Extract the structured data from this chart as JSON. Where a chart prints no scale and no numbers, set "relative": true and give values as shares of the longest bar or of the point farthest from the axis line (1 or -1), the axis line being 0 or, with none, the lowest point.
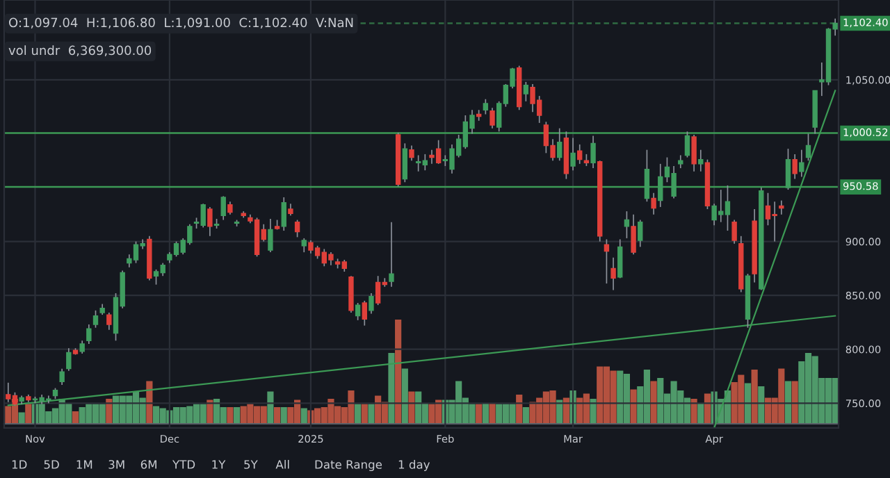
{
  "chart_data": [
    {
      "type": "candlestick",
      "categories": [
        null,
        null,
        null,
        null,
        "Nov",
        null,
        null,
        null,
        null,
        null,
        null,
        null,
        null,
        null,
        null,
        null,
        null,
        null,
        null,
        null,
        null,
        null,
        null,
        null,
        "Dec",
        null,
        null,
        null,
        null,
        null,
        null,
        null,
        null,
        null,
        null,
        null,
        null,
        null,
        null,
        null,
        null,
        null,
        null,
        null,
        null,
        "2025",
        null,
        null,
        null,
        null,
        null,
        null,
        null,
        null,
        null,
        null,
        null,
        null,
        null,
        null,
        null,
        null,
        null,
        null,
        null,
        "Feb",
        null,
        null,
        null,
        null,
        null,
        null,
        null,
        null,
        null,
        null,
        null,
        null,
        null,
        null,
        null,
        null,
        null,
        null,
        "Mar",
        null,
        null,
        null,
        null,
        null,
        null,
        null,
        null,
        null,
        null,
        null,
        null,
        null,
        null,
        null,
        null,
        null,
        null,
        null,
        null,
        "Apr",
        null,
        null,
        null,
        null,
        null,
        null,
        null,
        null,
        null,
        null,
        null,
        null,
        null,
        null,
        null,
        null,
        null,
        null
      ],
      "ohlc": [
        [
          758,
          769,
          751,
          754
        ],
        [
          757,
          760,
          748,
          749
        ],
        [
          752,
          757,
          749,
          755
        ],
        [
          756,
          758,
          751,
          753
        ],
        [
          753,
          756,
          750,
          754
        ],
        [
          752,
          758,
          749,
          755
        ],
        [
          753,
          757,
          750,
          754
        ],
        [
          757,
          764,
          754,
          762
        ],
        [
          770,
          782,
          767,
          779
        ],
        [
          782,
          801,
          780,
          797
        ],
        [
          799,
          801,
          795,
          796
        ],
        [
          798,
          808,
          796,
          805
        ],
        [
          808,
          823,
          805,
          819
        ],
        [
          823,
          836,
          820,
          831
        ],
        [
          834,
          842,
          832,
          838
        ],
        [
          832,
          834,
          818,
          823
        ],
        [
          815,
          852,
          808,
          848
        ],
        [
          840,
          873,
          838,
          871
        ],
        [
          880,
          888,
          876,
          884
        ],
        [
          883,
          900,
          880,
          897
        ],
        [
          896,
          902,
          893,
          898
        ],
        [
          902,
          905,
          864,
          866
        ],
        [
          868,
          874,
          860,
          872
        ],
        [
          871,
          880,
          868,
          878
        ],
        [
          883,
          890,
          880,
          888
        ],
        [
          888,
          900,
          886,
          898
        ],
        [
          890,
          903,
          888,
          901
        ],
        [
          899,
          916,
          897,
          914
        ],
        [
          917,
          922,
          912,
          918
        ],
        [
          915,
          935,
          913,
          934
        ],
        [
          930,
          932,
          905,
          914
        ],
        [
          915,
          921,
          912,
          916
        ],
        [
          924,
          942,
          920,
          941
        ],
        [
          934,
          937,
          925,
          927
        ],
        [
          917,
          920,
          914,
          918
        ],
        [
          926,
          928,
          922,
          924
        ],
        [
          922,
          925,
          917,
          919
        ],
        [
          920,
          922,
          886,
          888
        ],
        [
          911,
          916,
          900,
          902
        ],
        [
          892,
          921,
          890,
          911
        ],
        [
          914,
          920,
          911,
          912
        ],
        [
          914,
          941,
          910,
          936
        ],
        [
          930,
          935,
          924,
          926
        ],
        [
          918,
          920,
          904,
          909
        ],
        [
          896,
          903,
          890,
          901
        ],
        [
          899,
          901,
          889,
          892
        ],
        [
          894,
          896,
          884,
          887
        ],
        [
          890,
          893,
          877,
          880
        ],
        [
          888,
          890,
          878,
          883
        ],
        [
          881,
          884,
          875,
          879
        ],
        [
          881,
          883,
          872,
          875
        ],
        [
          867,
          868,
          834,
          836
        ],
        [
          831,
          843,
          827,
          841
        ],
        [
          843,
          845,
          822,
          828
        ],
        [
          836,
          852,
          833,
          849
        ],
        [
          862,
          868,
          841,
          843
        ],
        [
          862,
          866,
          858,
          860
        ],
        [
          863,
          918,
          858,
          870
        ],
        [
          999,
          1001,
          951,
          953
        ],
        [
          958,
          991,
          955,
          986
        ],
        [
          985,
          989,
          975,
          978
        ],
        [
          973,
          980,
          965,
          974
        ],
        [
          971,
          981,
          966,
          975
        ],
        [
          980,
          985,
          972,
          978
        ],
        [
          986,
          994,
          972,
          973
        ],
        [
          975,
          980,
          970,
          976
        ],
        [
          967,
          990,
          963,
          986
        ],
        [
          980,
          999,
          978,
          995
        ],
        [
          988,
          1017,
          986,
          1011
        ],
        [
          1005,
          1022,
          1000,
          1017
        ],
        [
          1018,
          1022,
          1012,
          1016
        ],
        [
          1022,
          1032,
          1018,
          1028
        ],
        [
          1021,
          1024,
          1005,
          1008
        ],
        [
          1006,
          1030,
          1002,
          1028
        ],
        [
          1028,
          1046,
          1025,
          1045
        ],
        [
          1044,
          1061,
          1042,
          1060
        ],
        [
          1061,
          1063,
          1022,
          1025
        ],
        [
          1037,
          1048,
          1030,
          1045
        ],
        [
          1043,
          1046,
          1020,
          1028
        ],
        [
          1031,
          1035,
          1010,
          1017
        ],
        [
          1008,
          1011,
          982,
          989
        ],
        [
          989,
          995,
          975,
          978
        ],
        [
          978,
          1005,
          975,
          992
        ],
        [
          996,
          1002,
          958,
          963
        ],
        [
          970,
          996,
          966,
          982
        ],
        [
          984,
          990,
          972,
          976
        ],
        [
          975,
          981,
          970,
          973
        ],
        [
          973,
          998,
          968,
          991
        ],
        [
          974,
          975,
          900,
          905
        ],
        [
          897,
          902,
          861,
          891
        ],
        [
          875,
          885,
          855,
          866
        ],
        [
          867,
          902,
          866,
          895
        ],
        [
          914,
          928,
          903,
          920
        ],
        [
          914,
          925,
          888,
          890
        ],
        [
          901,
          920,
          895,
          918
        ],
        [
          940,
          985,
          937,
          967
        ],
        [
          940,
          945,
          925,
          931
        ],
        [
          938,
          972,
          932,
          960
        ],
        [
          960,
          978,
          955,
          969
        ],
        [
          942,
          970,
          940,
          963
        ],
        [
          972,
          980,
          968,
          975
        ],
        [
          980,
          1002,
          978,
          998
        ],
        [
          997,
          999,
          965,
          972
        ],
        [
          972,
          985,
          965,
          976
        ],
        [
          973,
          976,
          930,
          933
        ],
        [
          920,
          935,
          915,
          933
        ],
        [
          925,
          948,
          918,
          928
        ],
        [
          925,
          952,
          910,
          937
        ],
        [
          918,
          920,
          898,
          901
        ],
        [
          898,
          905,
          853,
          856
        ],
        [
          828,
          870,
          820,
          868
        ],
        [
          919,
          930,
          862,
          870
        ],
        [
          856,
          950,
          855,
          947
        ],
        [
          933,
          945,
          915,
          921
        ],
        [
          925,
          937,
          900,
          924
        ],
        [
          933,
          938,
          925,
          931
        ],
        [
          950,
          986,
          948,
          976
        ],
        [
          976,
          981,
          958,
          963
        ],
        [
          965,
          985,
          960,
          973
        ],
        [
          978,
          1000,
          975,
          989
        ],
        [
          1006,
          1040,
          1000,
          1040
        ],
        [
          1048,
          1066,
          1035,
          1050
        ],
        [
          1048,
          1098,
          1045,
          1097
        ],
        [
          1097.04,
          1106.8,
          1091,
          1102.4
        ]
      ],
      "colors": [
        "#e0403a",
        "#e0403a",
        "#3f9d5f",
        "#e0403a",
        "#3f9d5f",
        "#3f9d5f",
        "#3f9d5f",
        "#3f9d5f",
        "#3f9d5f",
        "#3f9d5f",
        "#e0403a",
        "#3f9d5f",
        "#3f9d5f",
        "#3f9d5f",
        "#3f9d5f",
        "#e0403a",
        "#3f9d5f",
        "#3f9d5f",
        "#3f9d5f",
        "#3f9d5f",
        "#3f9d5f",
        "#e0403a",
        "#3f9d5f",
        "#3f9d5f",
        "#3f9d5f",
        "#3f9d5f",
        "#3f9d5f",
        "#3f9d5f",
        "#3f9d5f",
        "#3f9d5f",
        "#e0403a",
        "#3f9d5f",
        "#3f9d5f",
        "#e0403a",
        "#3f9d5f",
        "#e0403a",
        "#e0403a",
        "#e0403a",
        "#e0403a",
        "#3f9d5f",
        "#e0403a",
        "#3f9d5f",
        "#e0403a",
        "#e0403a",
        "#3f9d5f",
        "#e0403a",
        "#e0403a",
        "#e0403a",
        "#e0403a",
        "#e0403a",
        "#e0403a",
        "#e0403a",
        "#3f9d5f",
        "#e0403a",
        "#3f9d5f",
        "#e0403a",
        "#e0403a",
        "#3f9d5f",
        "#e0403a",
        "#3f9d5f",
        "#e0403a",
        "#3f9d5f",
        "#3f9d5f",
        "#e0403a",
        "#e0403a",
        "#3f9d5f",
        "#3f9d5f",
        "#3f9d5f",
        "#3f9d5f",
        "#3f9d5f",
        "#e0403a",
        "#3f9d5f",
        "#e0403a",
        "#3f9d5f",
        "#3f9d5f",
        "#3f9d5f",
        "#e0403a",
        "#3f9d5f",
        "#e0403a",
        "#e0403a",
        "#e0403a",
        "#e0403a",
        "#3f9d5f",
        "#e0403a",
        "#3f9d5f",
        "#e0403a",
        "#e0403a",
        "#3f9d5f",
        "#e0403a",
        "#e0403a",
        "#e0403a",
        "#3f9d5f",
        "#3f9d5f",
        "#e0403a",
        "#3f9d5f",
        "#3f9d5f",
        "#e0403a",
        "#3f9d5f",
        "#3f9d5f",
        "#3f9d5f",
        "#3f9d5f",
        "#3f9d5f",
        "#e0403a",
        "#3f9d5f",
        "#e0403a",
        "#3f9d5f",
        "#3f9d5f",
        "#3f9d5f",
        "#e0403a",
        "#e0403a",
        "#3f9d5f",
        "#e0403a",
        "#3f9d5f",
        "#e0403a",
        "#e0403a",
        "#e0403a",
        "#3f9d5f",
        "#e0403a",
        "#3f9d5f",
        "#3f9d5f",
        "#3f9d5f",
        "#3f9d5f",
        "#3f9d5f",
        "#3f9d5f"
      ],
      "series": [
        {
          "type": "line",
          "color": "#3c9a55",
          "values": [
            748,
            null,
            null,
            null,
            null,
            null,
            null,
            null,
            null,
            null,
            null,
            null,
            null,
            null,
            null,
            null,
            null,
            null,
            null,
            null,
            null,
            null,
            null,
            null,
            null,
            null,
            null,
            null,
            null,
            null,
            null,
            null,
            null,
            null,
            null,
            null,
            null,
            null,
            null,
            null,
            null,
            null,
            null,
            null,
            null,
            null,
            null,
            null,
            null,
            null,
            null,
            null,
            null,
            null,
            null,
            null,
            null,
            null,
            null,
            null,
            null,
            null,
            null,
            null,
            null,
            null,
            null,
            null,
            null,
            null,
            null,
            null,
            null,
            null,
            null,
            null,
            null,
            null,
            null,
            null,
            null,
            null,
            null,
            null,
            null,
            null,
            null,
            null,
            null,
            null,
            null,
            null,
            null,
            null,
            null,
            null,
            null,
            null,
            null,
            null,
            null,
            null,
            null,
            null,
            null,
            null,
            null,
            null,
            null,
            null,
            null,
            null,
            null,
            null,
            null,
            null,
            null,
            null,
            null,
            null,
            null,
            null,
            null,
            831
          ]
        },
        {
          "type": "line",
          "color": "#3c9a55",
          "values": [
            null,
            null,
            null,
            null,
            null,
            null,
            null,
            null,
            null,
            null,
            null,
            null,
            null,
            null,
            null,
            null,
            null,
            null,
            null,
            null,
            null,
            null,
            null,
            null,
            null,
            null,
            null,
            null,
            null,
            null,
            null,
            null,
            null,
            null,
            null,
            null,
            null,
            null,
            null,
            null,
            null,
            null,
            null,
            null,
            null,
            null,
            null,
            null,
            null,
            null,
            null,
            null,
            null,
            null,
            null,
            null,
            null,
            null,
            null,
            null,
            null,
            null,
            null,
            null,
            null,
            null,
            null,
            null,
            null,
            null,
            null,
            null,
            null,
            null,
            null,
            null,
            null,
            null,
            null,
            null,
            null,
            null,
            null,
            null,
            null,
            null,
            null,
            null,
            null,
            null,
            null,
            null,
            null,
            null,
            null,
            null,
            null,
            null,
            null,
            null,
            null,
            null,
            null,
            null,
            null,
            727,
            null,
            null,
            null,
            null,
            null,
            null,
            null,
            null,
            null,
            null,
            null,
            null,
            null,
            null,
            null,
            null,
            null,
            1040
          ]
        }
      ],
      "ylim": [
        727,
        1124
      ],
      "yticks": [
        {
          "value": 750,
          "label": "750.00"
        },
        {
          "value": 800,
          "label": "800.00"
        },
        {
          "value": 850,
          "label": "850.00"
        },
        {
          "value": 900,
          "label": "900.00"
        },
        {
          "value": 1050,
          "label": "1,050.00"
        }
      ],
      "grid": true,
      "ref_lines": [
        {
          "axis": "y",
          "value": 1102.4,
          "label": "1,102.40",
          "color": "#2f6b43",
          "line_style": "dashed"
        },
        {
          "axis": "y",
          "value": 1000.52,
          "label": "1,000.52",
          "color": "#3c9a55",
          "line_style": "solid"
        },
        {
          "axis": "y",
          "value": 950.58,
          "label": "950.58",
          "color": "#3c9a55",
          "line_style": "solid"
        }
      ],
      "annotations": [
        "O:1,097.04  H:1,106.80  L:1,091.00  C:1,102.40  V:NaN",
        "vol undr  6,369,300.00",
        "1D",
        "5D",
        "1M",
        "3M",
        "6M",
        "YTD",
        "1Y",
        "5Y",
        "All",
        "Date Range",
        "1 day"
      ]
    },
    {
      "type": "bar",
      "relative": true,
      "categories": [
        null,
        null,
        null,
        null,
        null,
        null,
        null,
        null,
        null,
        null,
        null,
        null,
        null,
        null,
        null,
        null,
        null,
        null,
        null,
        null,
        null,
        null,
        null,
        null,
        null,
        null,
        null,
        null,
        null,
        null,
        null,
        null,
        null,
        null,
        null,
        null,
        null,
        null,
        null,
        null,
        null,
        null,
        null,
        null,
        null,
        null,
        null,
        null,
        null,
        null,
        null,
        null,
        null,
        null,
        null,
        null,
        null,
        null,
        null,
        null,
        null,
        null,
        null,
        null,
        null,
        null,
        null,
        null,
        null,
        null,
        null,
        null,
        null,
        null,
        null,
        null,
        null,
        null,
        null,
        null,
        null,
        null,
        null,
        null,
        null,
        null,
        null,
        null,
        null,
        null,
        null,
        null,
        null,
        null,
        null,
        null,
        null,
        null,
        null,
        null,
        null,
        null,
        null,
        null,
        null,
        null,
        null,
        null,
        null,
        null,
        null,
        null,
        null,
        null,
        null,
        null,
        null,
        null,
        null,
        null,
        null,
        null,
        null,
        null
      ],
      "values": [
        0.17,
        0.24,
        0.11,
        0.2,
        0.2,
        0.2,
        0.12,
        0.15,
        0.24,
        0.2,
        0.12,
        0.16,
        0.19,
        0.19,
        0.19,
        0.24,
        0.27,
        0.27,
        0.27,
        0.31,
        0.25,
        0.41,
        0.17,
        0.15,
        0.13,
        0.16,
        0.16,
        0.17,
        0.19,
        0.19,
        0.23,
        0.24,
        0.16,
        0.16,
        0.16,
        0.17,
        0.19,
        0.17,
        0.17,
        0.31,
        0.16,
        0.16,
        0.16,
        0.23,
        0.15,
        0.13,
        0.15,
        0.16,
        0.24,
        0.17,
        0.16,
        0.32,
        0.19,
        0.19,
        0.19,
        0.27,
        0.21,
        0.68,
        1,
        0.53,
        0.31,
        0.31,
        0.2,
        0.19,
        0.23,
        0.23,
        0.23,
        0.41,
        0.25,
        0.19,
        0.19,
        0.2,
        0.2,
        0.19,
        0.19,
        0.19,
        0.28,
        0.16,
        0.21,
        0.25,
        0.31,
        0.32,
        0.23,
        0.25,
        0.32,
        0.25,
        0.29,
        0.24,
        0.55,
        0.55,
        0.51,
        0.51,
        0.48,
        0.33,
        0.36,
        0.52,
        0.41,
        0.44,
        0.29,
        0.41,
        0.32,
        0.25,
        0.24,
        0.2,
        0.29,
        0.31,
        0.24,
        0.32,
        0.4,
        0.47,
        0.39,
        0.52,
        0.36,
        0.25,
        0.25,
        0.53,
        0.41,
        0.41,
        0.6,
        0.68,
        0.65,
        0.44,
        0.44,
        0.44
      ],
      "colors": [
        "#b4513f",
        "#b4513f",
        "#4f9a6a",
        "#b4513f",
        "#4f9a6a",
        "#4f9a6a",
        "#4f9a6a",
        "#4f9a6a",
        "#4f9a6a",
        "#4f9a6a",
        "#b4513f",
        "#4f9a6a",
        "#4f9a6a",
        "#4f9a6a",
        "#4f9a6a",
        "#b4513f",
        "#4f9a6a",
        "#4f9a6a",
        "#4f9a6a",
        "#4f9a6a",
        "#4f9a6a",
        "#b4513f",
        "#4f9a6a",
        "#4f9a6a",
        "#4f9a6a",
        "#4f9a6a",
        "#4f9a6a",
        "#4f9a6a",
        "#4f9a6a",
        "#4f9a6a",
        "#b4513f",
        "#4f9a6a",
        "#4f9a6a",
        "#b4513f",
        "#4f9a6a",
        "#b4513f",
        "#b4513f",
        "#b4513f",
        "#b4513f",
        "#4f9a6a",
        "#b4513f",
        "#4f9a6a",
        "#b4513f",
        "#b4513f",
        "#4f9a6a",
        "#b4513f",
        "#b4513f",
        "#b4513f",
        "#b4513f",
        "#b4513f",
        "#b4513f",
        "#b4513f",
        "#4f9a6a",
        "#b4513f",
        "#4f9a6a",
        "#b4513f",
        "#b4513f",
        "#4f9a6a",
        "#b4513f",
        "#4f9a6a",
        "#b4513f",
        "#4f9a6a",
        "#4f9a6a",
        "#b4513f",
        "#b4513f",
        "#4f9a6a",
        "#4f9a6a",
        "#4f9a6a",
        "#4f9a6a",
        "#4f9a6a",
        "#b4513f",
        "#4f9a6a",
        "#b4513f",
        "#4f9a6a",
        "#4f9a6a",
        "#4f9a6a",
        "#b4513f",
        "#4f9a6a",
        "#b4513f",
        "#b4513f",
        "#b4513f",
        "#b4513f",
        "#4f9a6a",
        "#b4513f",
        "#4f9a6a",
        "#b4513f",
        "#b4513f",
        "#4f9a6a",
        "#b4513f",
        "#b4513f",
        "#b4513f",
        "#4f9a6a",
        "#4f9a6a",
        "#b4513f",
        "#4f9a6a",
        "#4f9a6a",
        "#b4513f",
        "#4f9a6a",
        "#4f9a6a",
        "#4f9a6a",
        "#4f9a6a",
        "#4f9a6a",
        "#b4513f",
        "#4f9a6a",
        "#b4513f",
        "#4f9a6a",
        "#4f9a6a",
        "#4f9a6a",
        "#b4513f",
        "#b4513f",
        "#4f9a6a",
        "#b4513f",
        "#4f9a6a",
        "#b4513f",
        "#b4513f",
        "#b4513f",
        "#4f9a6a",
        "#b4513f",
        "#4f9a6a",
        "#4f9a6a",
        "#4f9a6a",
        "#4f9a6a",
        "#4f9a6a",
        "#4f9a6a"
      ]
    }
  ]
}
